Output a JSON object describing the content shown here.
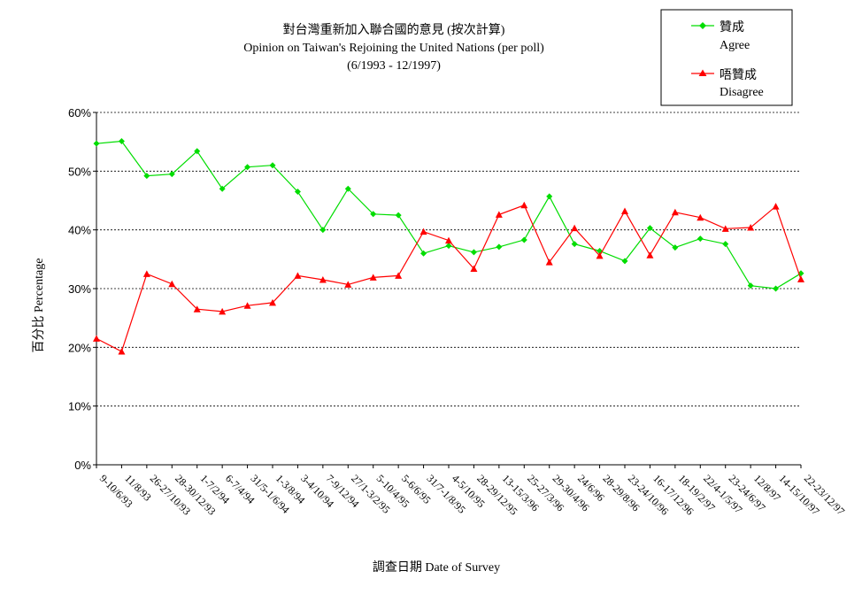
{
  "chart_data": {
    "type": "line",
    "title": [
      "對台灣重新加入聯合國的意見 (按次計算)",
      "Opinion on Taiwan's Rejoining the United Nations (per poll)",
      "(6/1993 - 12/1997)"
    ],
    "xlabel": "調查日期 Date of Survey",
    "ylabel": "百分比 Percentage",
    "ylim": [
      0,
      60
    ],
    "yticks": [
      "0%",
      "10%",
      "20%",
      "30%",
      "40%",
      "50%",
      "60%"
    ],
    "grid": "horizontal dashed",
    "legend_position": "top-right",
    "categories": [
      "9-10/6/93",
      "11/8/93",
      "26-27/10/93",
      "28-30/12/93",
      "1-7/2/94",
      "6-7/4/94",
      "31/5-1/6/94",
      "1-3/8/94",
      "3-4/10/94",
      "7-9/12/94",
      "27/1-3/2/95",
      "5-10/4/95",
      "5-6/6/95",
      "31/7-1/8/95",
      "4-5/10/95",
      "28-29/12/95",
      "13-15/3/96",
      "25-27/3/96",
      "29-30/4/96",
      "24/6/96",
      "28-29/8/96",
      "23-24/10/96",
      "16-17/12/96",
      "18-19/2/97",
      "22/4-1/5/97",
      "23-24/6/97",
      "12/8/97",
      "14-15/10/97",
      "22-23/12/97"
    ],
    "series": [
      {
        "name_zh": "贊成",
        "name_en": "Agree",
        "color": "#00dd00",
        "marker": "diamond",
        "values": [
          54.7,
          55.1,
          49.2,
          49.5,
          53.4,
          47.0,
          50.7,
          51.0,
          46.5,
          40.0,
          47.0,
          42.7,
          42.5,
          36.0,
          37.3,
          36.2,
          37.1,
          38.3,
          45.7,
          37.6,
          36.4,
          34.7,
          40.3,
          37.0,
          38.5,
          37.6,
          30.5,
          30.0,
          32.6
        ]
      },
      {
        "name_zh": "唔贊成",
        "name_en": "Disagree",
        "color": "#ff0000",
        "marker": "triangle",
        "values": [
          21.5,
          19.3,
          32.5,
          30.8,
          26.5,
          26.1,
          27.1,
          27.6,
          32.2,
          31.5,
          30.7,
          31.9,
          32.2,
          39.7,
          38.2,
          33.4,
          42.6,
          44.2,
          34.5,
          40.3,
          35.6,
          43.2,
          35.7,
          43.0,
          42.1,
          40.2,
          40.4,
          44.0,
          31.6
        ]
      }
    ]
  }
}
